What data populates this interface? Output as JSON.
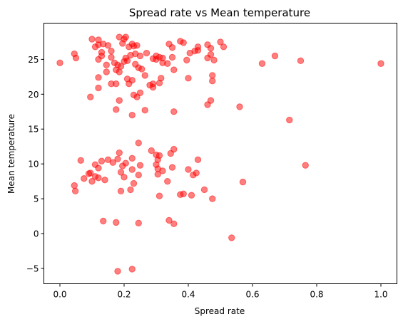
{
  "chart_data": {
    "type": "scatter",
    "title": "Spread rate vs Mean temperature",
    "xlabel": "Spread rate",
    "ylabel": "Mean temperature",
    "xlim": [
      -0.05,
      1.05
    ],
    "ylim": [
      -7.2,
      30.2
    ],
    "xticks": [
      0.0,
      0.2,
      0.4,
      0.6,
      0.8,
      1.0
    ],
    "xtick_labels": [
      "0.0",
      "0.2",
      "0.4",
      "0.6",
      "0.8",
      "1.0"
    ],
    "yticks": [
      -5,
      0,
      5,
      10,
      15,
      20,
      25
    ],
    "ytick_labels": [
      "−5",
      "0",
      "5",
      "10",
      "15",
      "20",
      "25"
    ],
    "grid": false,
    "marker_color": "#ff0000",
    "marker_alpha": 0.5,
    "series": [
      {
        "points": [
          [
            0.0,
            24.5
          ],
          [
            0.045,
            25.8
          ],
          [
            0.05,
            25.2
          ],
          [
            0.1,
            27.9
          ],
          [
            0.12,
            27.8
          ],
          [
            0.12,
            27.1
          ],
          [
            0.11,
            26.8
          ],
          [
            0.135,
            27.2
          ],
          [
            0.15,
            27.0
          ],
          [
            0.13,
            26.0
          ],
          [
            0.16,
            26.2
          ],
          [
            0.185,
            28.2
          ],
          [
            0.2,
            27.9
          ],
          [
            0.205,
            28.2
          ],
          [
            0.195,
            27.3
          ],
          [
            0.215,
            26.8
          ],
          [
            0.225,
            27.2
          ],
          [
            0.23,
            26.9
          ],
          [
            0.24,
            27.0
          ],
          [
            0.22,
            25.6
          ],
          [
            0.235,
            25.8
          ],
          [
            0.25,
            25.5
          ],
          [
            0.27,
            25.9
          ],
          [
            0.29,
            25.1
          ],
          [
            0.3,
            25.5
          ],
          [
            0.31,
            25.3
          ],
          [
            0.32,
            25.2
          ],
          [
            0.34,
            27.2
          ],
          [
            0.35,
            26.7
          ],
          [
            0.375,
            27.6
          ],
          [
            0.385,
            27.4
          ],
          [
            0.405,
            25.9
          ],
          [
            0.42,
            26.2
          ],
          [
            0.43,
            26.8
          ],
          [
            0.46,
            27.1
          ],
          [
            0.47,
            26.6
          ],
          [
            0.5,
            27.5
          ],
          [
            0.51,
            26.8
          ],
          [
            0.13,
            25.5
          ],
          [
            0.12,
            25.0
          ],
          [
            0.145,
            24.2
          ],
          [
            0.16,
            25.3
          ],
          [
            0.17,
            24.5
          ],
          [
            0.18,
            24.2
          ],
          [
            0.19,
            24.0
          ],
          [
            0.2,
            24.7
          ],
          [
            0.205,
            25.2
          ],
          [
            0.21,
            24.8
          ],
          [
            0.235,
            24.3
          ],
          [
            0.245,
            23.8
          ],
          [
            0.255,
            23.6
          ],
          [
            0.265,
            22.7
          ],
          [
            0.3,
            25.0
          ],
          [
            0.32,
            24.5
          ],
          [
            0.35,
            25.3
          ],
          [
            0.395,
            24.9
          ],
          [
            0.46,
            25.2
          ],
          [
            0.47,
            25.7
          ],
          [
            0.48,
            24.9
          ],
          [
            0.43,
            26.3
          ],
          [
            0.63,
            24.4
          ],
          [
            0.67,
            25.5
          ],
          [
            0.75,
            24.8
          ],
          [
            1.0,
            24.4
          ],
          [
            0.175,
            23.5
          ],
          [
            0.185,
            23.2
          ],
          [
            0.145,
            23.2
          ],
          [
            0.12,
            22.4
          ],
          [
            0.16,
            21.5
          ],
          [
            0.175,
            21.5
          ],
          [
            0.21,
            22.2
          ],
          [
            0.215,
            21.5
          ],
          [
            0.225,
            22.0
          ],
          [
            0.23,
            19.9
          ],
          [
            0.25,
            20.2
          ],
          [
            0.24,
            19.6
          ],
          [
            0.28,
            21.3
          ],
          [
            0.29,
            21.5
          ],
          [
            0.29,
            21.0
          ],
          [
            0.315,
            22.3
          ],
          [
            0.31,
            21.6
          ],
          [
            0.335,
            24.4
          ],
          [
            0.355,
            23.5
          ],
          [
            0.4,
            22.3
          ],
          [
            0.475,
            22.7
          ],
          [
            0.475,
            21.9
          ],
          [
            0.12,
            20.9
          ],
          [
            0.095,
            19.6
          ],
          [
            0.175,
            17.8
          ],
          [
            0.185,
            19.1
          ],
          [
            0.225,
            17.0
          ],
          [
            0.265,
            17.7
          ],
          [
            0.355,
            17.5
          ],
          [
            0.46,
            18.5
          ],
          [
            0.47,
            19.1
          ],
          [
            0.56,
            18.2
          ],
          [
            0.715,
            16.3
          ],
          [
            0.245,
            13.0
          ],
          [
            0.285,
            11.9
          ],
          [
            0.3,
            11.3
          ],
          [
            0.305,
            10.6
          ],
          [
            0.31,
            11.2
          ],
          [
            0.345,
            11.5
          ],
          [
            0.355,
            12.1
          ],
          [
            0.43,
            10.6
          ],
          [
            0.185,
            11.6
          ],
          [
            0.225,
            10.8
          ],
          [
            0.065,
            10.5
          ],
          [
            0.11,
            9.9
          ],
          [
            0.12,
            9.4
          ],
          [
            0.13,
            10.4
          ],
          [
            0.15,
            10.6
          ],
          [
            0.165,
            10.2
          ],
          [
            0.18,
            10.7
          ],
          [
            0.195,
            9.7
          ],
          [
            0.205,
            10.1
          ],
          [
            0.225,
            9.2
          ],
          [
            0.25,
            9.8
          ],
          [
            0.3,
            9.9
          ],
          [
            0.305,
            9.3
          ],
          [
            0.32,
            9.0
          ],
          [
            0.35,
            9.5
          ],
          [
            0.4,
            9.2
          ],
          [
            0.415,
            8.4
          ],
          [
            0.425,
            8.7
          ],
          [
            0.305,
            8.5
          ],
          [
            0.245,
            8.4
          ],
          [
            0.19,
            8.8
          ],
          [
            0.09,
            8.6
          ],
          [
            0.095,
            8.7
          ],
          [
            0.075,
            7.9
          ],
          [
            0.11,
            8.2
          ],
          [
            0.12,
            8.0
          ],
          [
            0.1,
            7.5
          ],
          [
            0.14,
            7.7
          ],
          [
            0.2,
            8.1
          ],
          [
            0.23,
            7.2
          ],
          [
            0.335,
            7.5
          ],
          [
            0.765,
            9.8
          ],
          [
            0.57,
            7.4
          ],
          [
            0.045,
            6.9
          ],
          [
            0.048,
            6.1
          ],
          [
            0.19,
            6.1
          ],
          [
            0.22,
            6.3
          ],
          [
            0.31,
            5.4
          ],
          [
            0.375,
            5.6
          ],
          [
            0.385,
            5.7
          ],
          [
            0.41,
            5.5
          ],
          [
            0.45,
            6.3
          ],
          [
            0.475,
            5.0
          ],
          [
            0.135,
            1.8
          ],
          [
            0.175,
            1.6
          ],
          [
            0.245,
            1.5
          ],
          [
            0.34,
            1.9
          ],
          [
            0.355,
            1.4
          ],
          [
            0.535,
            -0.6
          ],
          [
            0.18,
            -5.4
          ],
          [
            0.225,
            -5.1
          ]
        ]
      }
    ]
  }
}
